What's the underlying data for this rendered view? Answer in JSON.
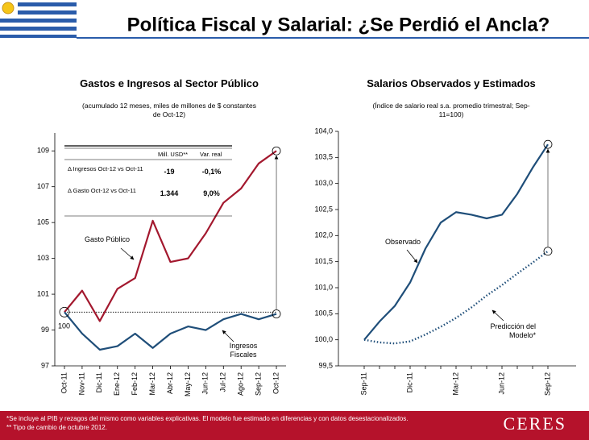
{
  "header": {
    "title": "Política Fiscal y Salarial: ¿Se Perdió el Ancla?"
  },
  "chart_data": [
    {
      "type": "line",
      "title": "Gastos e Ingresos al Sector Público",
      "subtitle": "(acumulado 12 meses, miles de millones de $ constantes de Oct-12)",
      "categories": [
        "Oct-11",
        "Nov-11",
        "Dic-11",
        "Ene-12",
        "Feb-12",
        "Mar-12",
        "Abr-12",
        "May-12",
        "Jun-12",
        "Jul-12",
        "Ago-12",
        "Sep-12",
        "Oct-12"
      ],
      "series": [
        {
          "name": "Gasto Público",
          "color": "#a3182e",
          "values": [
            100.0,
            101.2,
            99.5,
            101.3,
            101.9,
            105.1,
            102.8,
            103.0,
            104.4,
            106.1,
            106.9,
            108.3,
            109.0
          ]
        },
        {
          "name": "Ingresos Fiscales",
          "color": "#1f4e79",
          "values": [
            100.0,
            98.8,
            97.9,
            98.1,
            98.8,
            98.0,
            98.8,
            99.2,
            99.0,
            99.6,
            99.9,
            99.6,
            99.9
          ]
        }
      ],
      "ylim": [
        97,
        110
      ],
      "yticks": [
        97,
        99,
        101,
        103,
        105,
        107,
        109
      ],
      "reference_line": 100,
      "table": {
        "header": [
          "Mill. USD**",
          "Var. real"
        ],
        "rows": [
          [
            "Δ Ingresos Oct-12 vs Oct-11",
            "-19",
            "-0,1%"
          ],
          [
            "Δ Gasto Oct-12 vs Oct-11",
            "1.344",
            "9,0%"
          ]
        ]
      }
    },
    {
      "type": "line",
      "title": "Salarios Observados y Estimados",
      "subtitle": "(Índice de salario real s.a. promedio trimestral; Sep-11=100)",
      "categories": [
        "Sep-11",
        null,
        null,
        "Dic-11",
        null,
        null,
        "Mar-12",
        null,
        null,
        "Jun-12",
        null,
        null,
        "Sep-12"
      ],
      "series": [
        {
          "name": "Observado",
          "color": "#1f4e79",
          "dash": "solid",
          "values": [
            100.0,
            100.35,
            100.65,
            101.1,
            101.75,
            102.25,
            102.45,
            102.4,
            102.33,
            102.4,
            102.8,
            103.3,
            103.75
          ]
        },
        {
          "name": "Predicción del Modelo*",
          "color": "#1f4e79",
          "dash": "dotted",
          "values": [
            100.0,
            99.95,
            99.93,
            99.97,
            100.1,
            100.25,
            100.42,
            100.62,
            100.85,
            101.05,
            101.27,
            101.48,
            101.7
          ]
        }
      ],
      "ylim": [
        99.5,
        104.0
      ],
      "yticks": [
        {
          "value": 99.5,
          "label": "99,5"
        },
        {
          "value": 100.0,
          "label": "100,0"
        },
        {
          "value": 100.5,
          "label": "100,5"
        },
        {
          "value": 101.0,
          "label": "101,0"
        },
        {
          "value": 101.5,
          "label": "101,5"
        },
        {
          "value": 102.0,
          "label": "102,0"
        },
        {
          "value": 102.5,
          "label": "102,5"
        },
        {
          "value": 103.0,
          "label": "103,0"
        },
        {
          "value": 103.5,
          "label": "103,5"
        },
        {
          "value": 104.0,
          "label": "104,0"
        }
      ]
    }
  ],
  "footer": {
    "notes": [
      "*Se incluye al PIB y rezagos del mismo como variables explicativas. El modelo fue estimado en diferencias y con datos desestacionalizados.",
      "** Tipo de cambio de octubre 2012."
    ],
    "logo": "CERES"
  }
}
